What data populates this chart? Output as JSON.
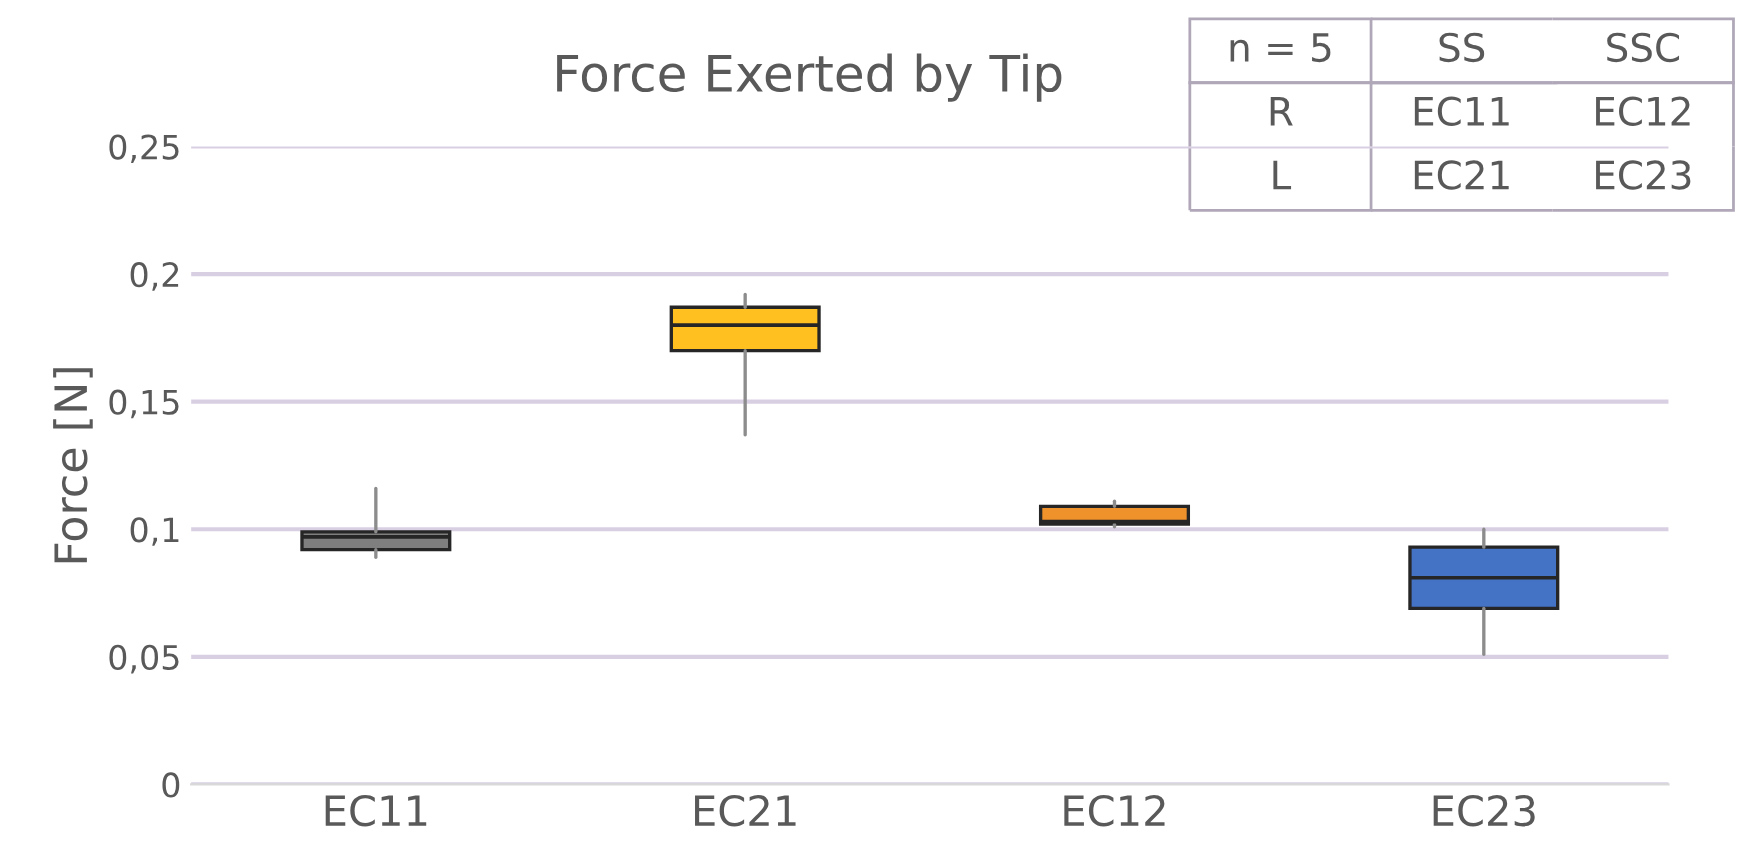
{
  "chart_data": {
    "type": "box",
    "title": "Force Exerted by Tip",
    "ylabel": "Force [N]",
    "categories": [
      "EC11",
      "EC21",
      "EC12",
      "EC23"
    ],
    "colors": [
      "#7f7f7f",
      "#ffc020",
      "#f0922b",
      "#4472c4"
    ],
    "boxes": [
      {
        "low": 0.089,
        "q1": 0.092,
        "median": 0.097,
        "q3": 0.099,
        "high": 0.116
      },
      {
        "low": 0.137,
        "q1": 0.17,
        "median": 0.18,
        "q3": 0.187,
        "high": 0.192
      },
      {
        "low": 0.101,
        "q1": 0.102,
        "median": 0.103,
        "q3": 0.109,
        "high": 0.111
      },
      {
        "low": 0.051,
        "q1": 0.069,
        "median": 0.081,
        "q3": 0.093,
        "high": 0.1
      }
    ],
    "ylim": [
      0,
      0.25
    ],
    "yticks": [
      0,
      {
        "value": 0.05,
        "label": "0,05"
      },
      {
        "value": 0.1,
        "label": "0,1"
      },
      {
        "value": 0.15,
        "label": "0,15"
      },
      {
        "value": 0.2,
        "label": "0,2"
      },
      {
        "value": 0.25,
        "label": "0,25"
      }
    ],
    "grid": "y",
    "annotations": [
      "n = 5",
      "SS",
      "SSC",
      "R",
      "EC11",
      "EC12",
      "L",
      "EC21",
      "EC23"
    ]
  }
}
